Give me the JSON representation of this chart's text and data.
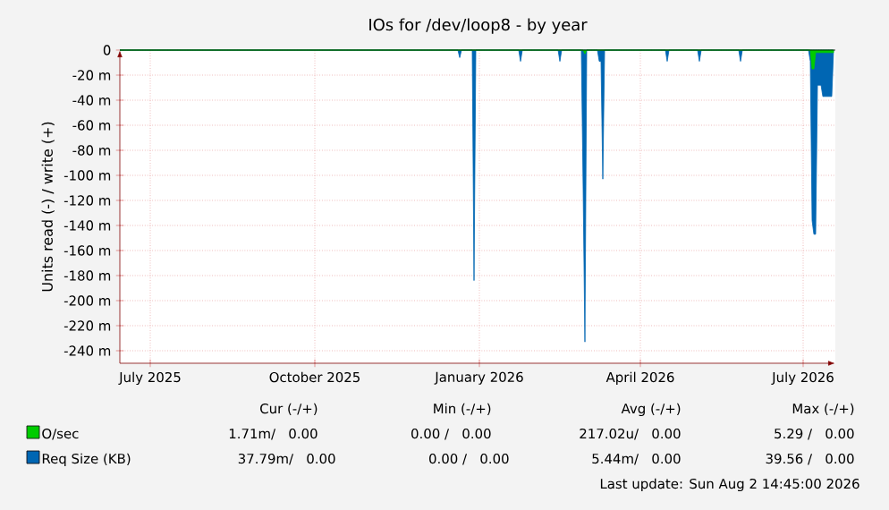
{
  "chart_data": {
    "type": "area",
    "title": "IOs for /dev/loop8 - by year",
    "ylabel": "Units read (-) / write (+)",
    "xlim": [
      "2025-06-29",
      "2026-08-03"
    ],
    "xticks": [
      {
        "value": "2025-07-16",
        "label": "July 2025"
      },
      {
        "value": "2025-10-16",
        "label": "October 2025"
      },
      {
        "value": "2026-01-16",
        "label": "January 2026"
      },
      {
        "value": "2026-04-16",
        "label": "April 2026"
      },
      {
        "value": "2026-07-16",
        "label": "July 2026"
      }
    ],
    "ylim": [
      -250,
      0
    ],
    "yticks": [
      0,
      {
        "value": -20,
        "label": "-20 m"
      },
      {
        "value": -40,
        "label": "-40 m"
      },
      {
        "value": -60,
        "label": "-60 m"
      },
      {
        "value": -80,
        "label": "-80 m"
      },
      {
        "value": -100,
        "label": "-100 m"
      },
      {
        "value": -120,
        "label": "-120 m"
      },
      {
        "value": -140,
        "label": "-140 m"
      },
      {
        "value": -160,
        "label": "-160 m"
      },
      {
        "value": -180,
        "label": "-180 m"
      },
      {
        "value": -200,
        "label": "-200 m"
      },
      {
        "value": -220,
        "label": "-220 m"
      },
      {
        "value": -240,
        "label": "-240 m"
      }
    ],
    "grid": true,
    "legend": "bottom",
    "series": [
      {
        "name": "Req Size (KB)",
        "color": "#0066b3",
        "x": [
          "2025-06-29",
          "2026-01-04",
          "2026-01-05",
          "2026-01-06",
          "2026-01-12",
          "2026-01-13",
          "2026-01-14",
          "2026-02-07",
          "2026-02-08",
          "2026-02-09",
          "2026-03-01",
          "2026-03-02",
          "2026-03-03",
          "2026-03-14",
          "2026-03-15",
          "2026-03-16",
          "2026-03-17",
          "2026-03-23",
          "2026-03-24",
          "2026-03-25",
          "2026-03-26",
          "2026-03-27",
          "2026-04-30",
          "2026-05-01",
          "2026-05-02",
          "2026-05-18",
          "2026-05-19",
          "2026-05-20",
          "2026-06-10",
          "2026-06-11",
          "2026-06-12",
          "2026-07-19",
          "2026-07-20",
          "2026-07-21",
          "2026-07-22",
          "2026-07-23",
          "2026-07-24",
          "2026-07-26",
          "2026-07-27",
          "2026-08-01",
          "2026-08-02"
        ],
        "values": [
          0,
          0,
          -6,
          0,
          0,
          -184,
          0,
          0,
          -9,
          0,
          0,
          -9,
          0,
          0,
          -110,
          -233,
          0,
          0,
          -9,
          -9,
          -103,
          0,
          0,
          -9,
          0,
          0,
          -9,
          0,
          0,
          -9,
          0,
          0,
          -9,
          -136,
          -147,
          -147,
          -28,
          -28,
          -37,
          -37,
          0
        ]
      },
      {
        "name": "O/sec",
        "color": "#00cc00",
        "x": [
          "2025-06-29",
          "2026-03-15",
          "2026-03-16",
          "2026-03-17",
          "2026-07-20",
          "2026-07-21",
          "2026-07-22",
          "2026-07-23",
          "2026-08-02"
        ],
        "values": [
          0,
          0,
          -3,
          0,
          0,
          -15,
          -15,
          -2,
          -2
        ]
      }
    ],
    "annotations": [
      "Cur (-/+)",
      "Min (-/+)",
      "Avg (-/+)",
      "Max (-/+)",
      "1.71m/   0.00",
      "0.00 /   0.00",
      "217.02u/   0.00",
      "5.29 /   0.00",
      "37.79m/   0.00",
      "0.00 /   0.00",
      "5.44m/   0.00",
      "39.56 /   0.00",
      "Last update: Sun Aug  2 14:45:00 2026"
    ]
  }
}
